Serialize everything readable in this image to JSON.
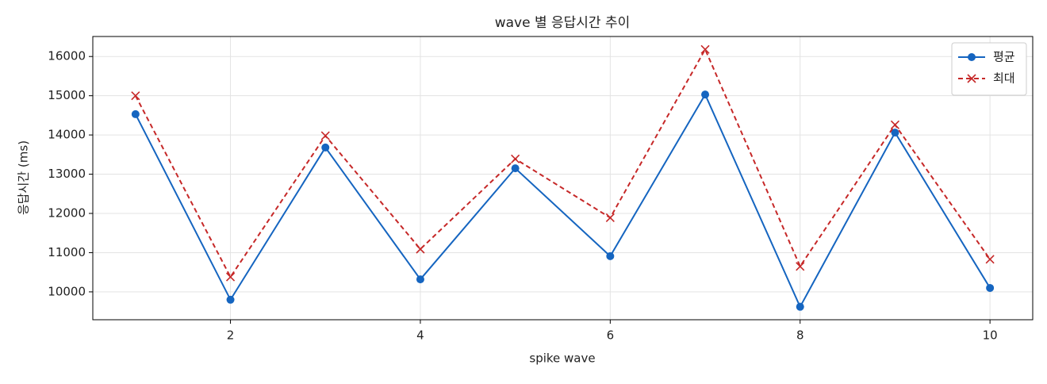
{
  "chart_data": {
    "type": "line",
    "title": "wave 별 응답시간 추이",
    "x_label": "spike wave",
    "y_label": "응답시간 (ms)",
    "x": [
      1,
      2,
      3,
      4,
      5,
      6,
      7,
      8,
      9,
      10
    ],
    "series": [
      {
        "name": "평균",
        "color": "#1565c0",
        "marker": "circle",
        "dash": false,
        "values": [
          14530,
          9800,
          13680,
          10320,
          13150,
          10910,
          15030,
          9620,
          14060,
          10100
        ]
      },
      {
        "name": "최대",
        "color": "#c62828",
        "marker": "x",
        "dash": true,
        "values": [
          15000,
          10380,
          13980,
          11090,
          13390,
          11890,
          16180,
          10650,
          14260,
          10830
        ]
      }
    ],
    "xlim": [
      0.55,
      10.45
    ],
    "ylim": [
      9290,
      16510
    ],
    "xticks": [
      2,
      4,
      6,
      8,
      10
    ],
    "yticks": [
      10000,
      11000,
      12000,
      13000,
      14000,
      15000,
      16000
    ],
    "grid": true,
    "legend": "upper right"
  }
}
